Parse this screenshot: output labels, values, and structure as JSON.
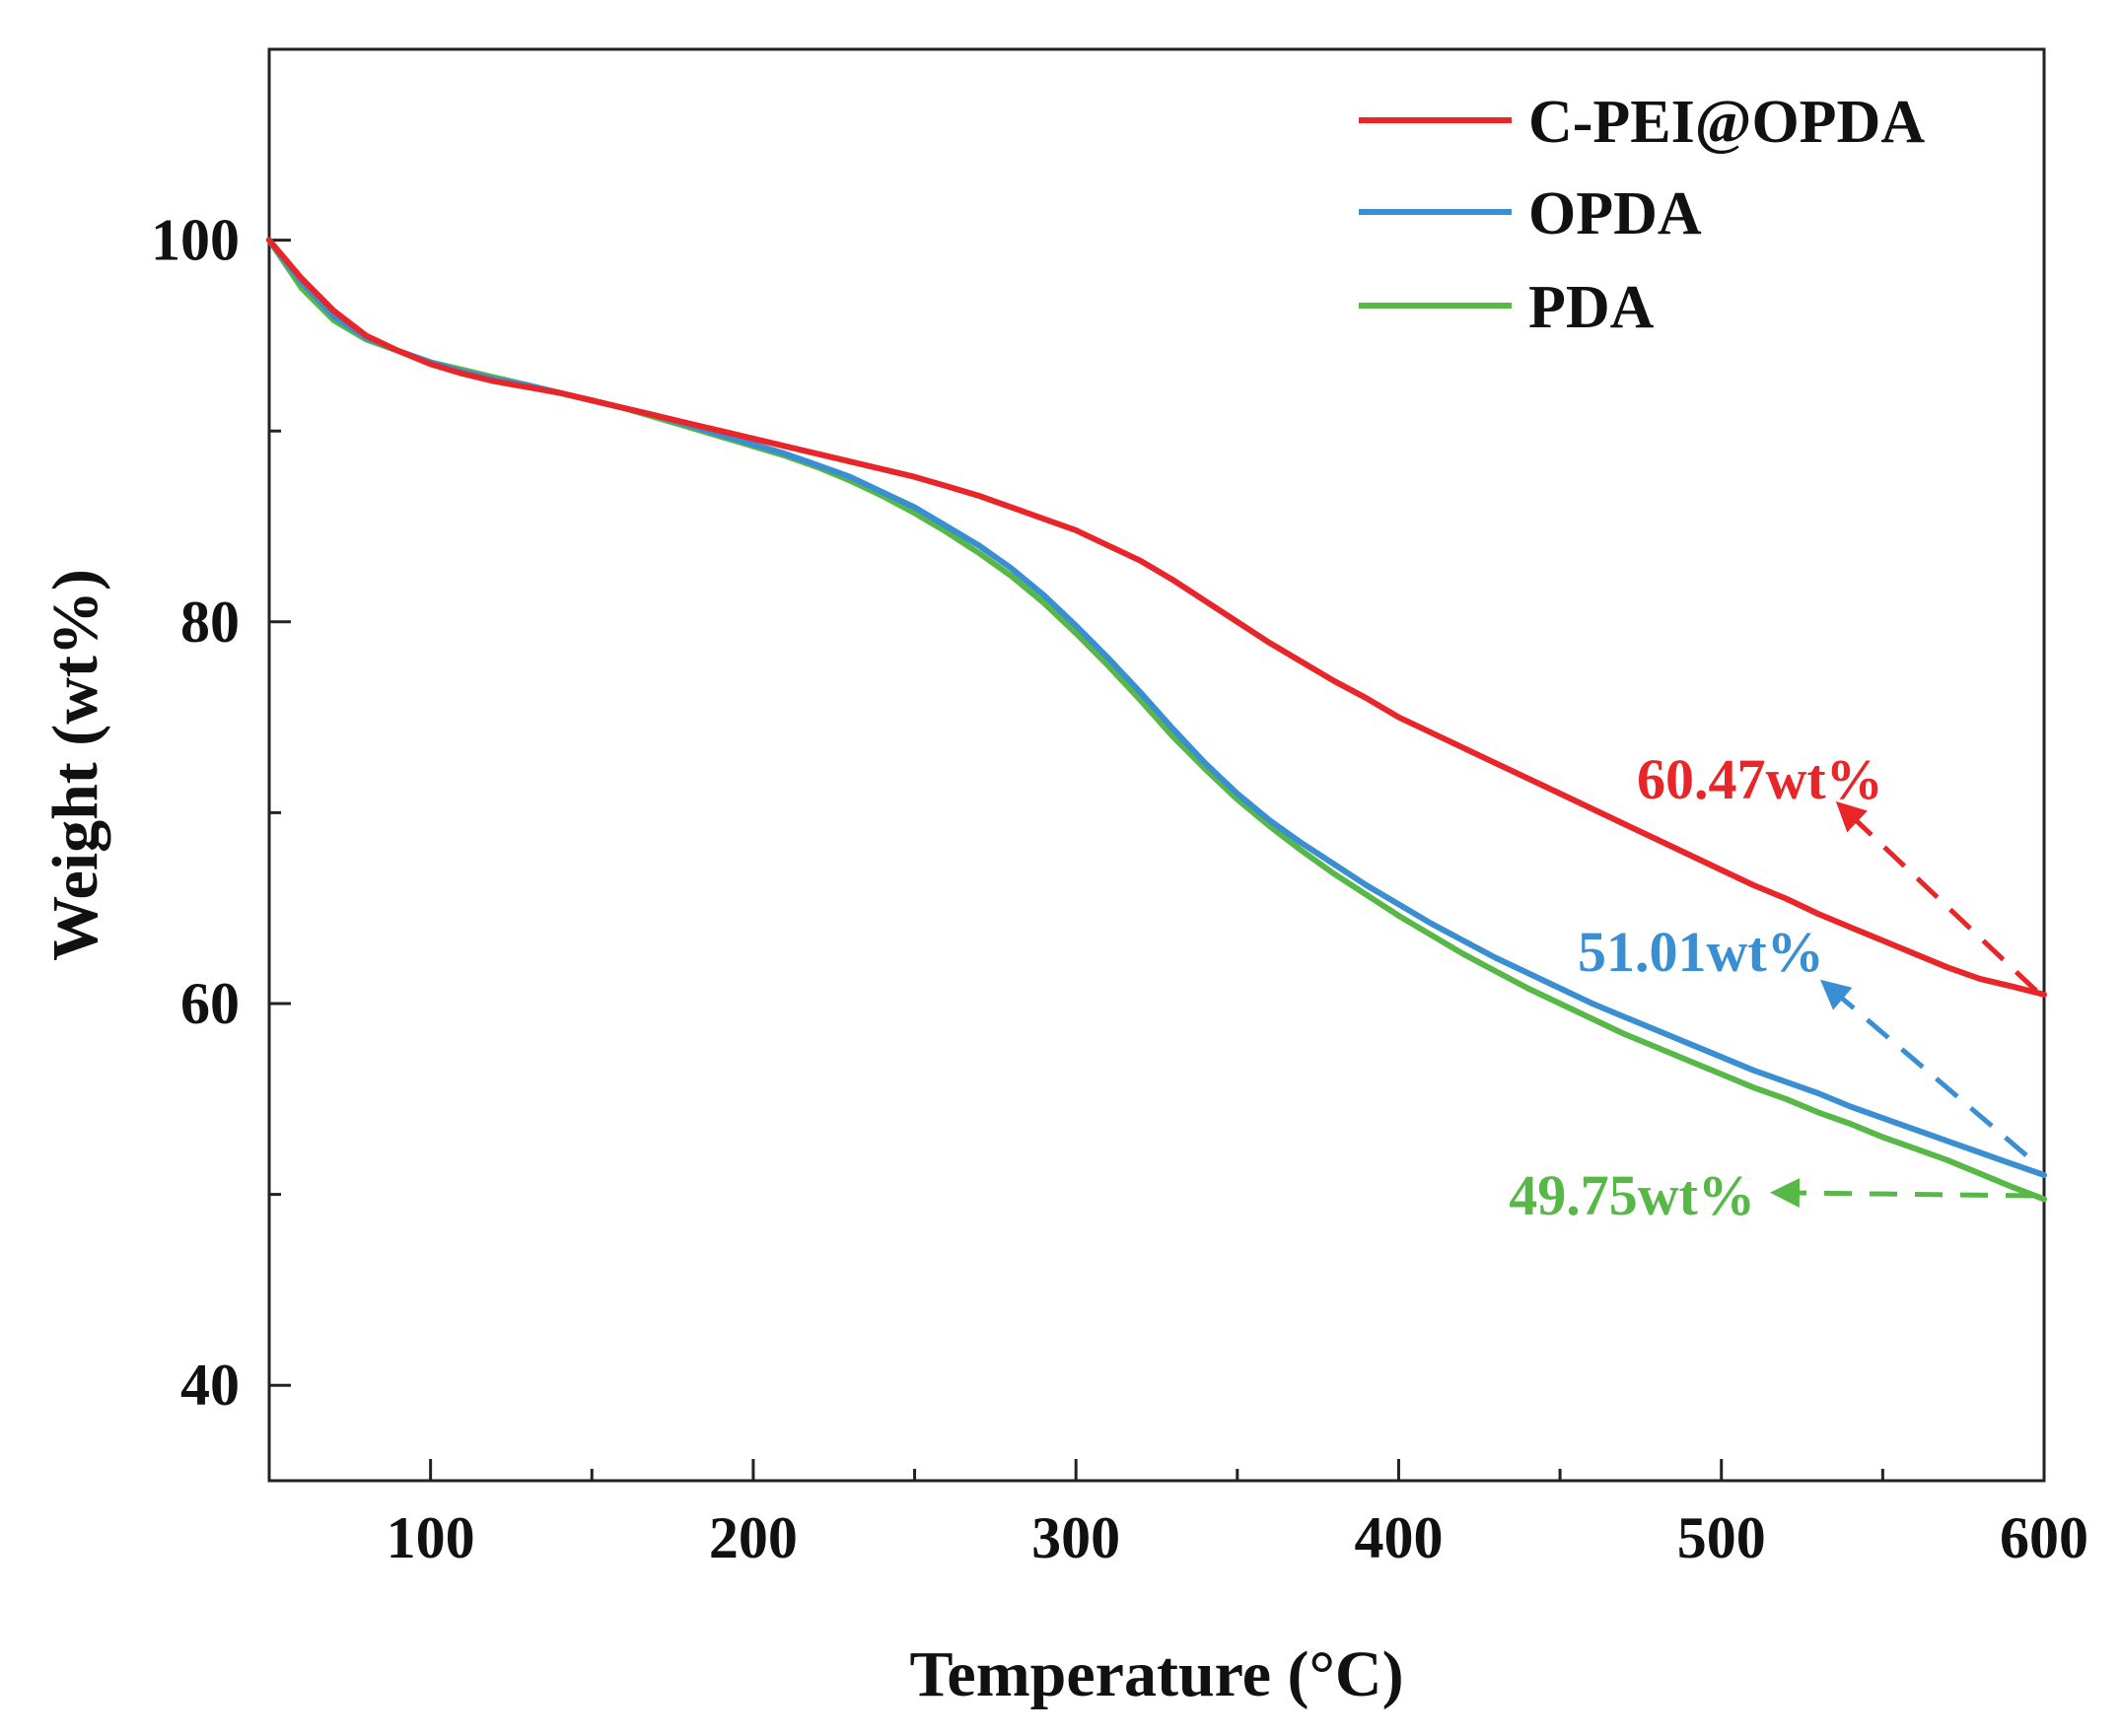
{
  "chart_data": {
    "type": "line",
    "xlabel": "Temperature (°C)",
    "ylabel": "Weight (wt%)",
    "xlim": [
      50,
      600
    ],
    "ylim": [
      35,
      110
    ],
    "x_ticks": [
      100,
      200,
      300,
      400,
      500,
      600
    ],
    "x_minor_ticks": [
      150,
      250,
      350,
      450,
      550
    ],
    "y_ticks": [
      40,
      60,
      80,
      100
    ],
    "y_minor_ticks": [
      50,
      70,
      90
    ],
    "grid": false,
    "legend_position": "top-right",
    "series": [
      {
        "name": "C-PEI@OPDA",
        "color": "#e8262a",
        "x": [
          50,
          60,
          70,
          80,
          90,
          100,
          110,
          120,
          130,
          140,
          150,
          160,
          170,
          180,
          190,
          200,
          210,
          220,
          230,
          240,
          250,
          260,
          270,
          280,
          290,
          300,
          310,
          320,
          330,
          340,
          350,
          360,
          370,
          380,
          390,
          400,
          410,
          420,
          430,
          440,
          450,
          460,
          470,
          480,
          490,
          500,
          510,
          520,
          530,
          540,
          550,
          560,
          570,
          580,
          590,
          600
        ],
        "y": [
          100.0,
          98.0,
          96.3,
          95.0,
          94.2,
          93.5,
          93.0,
          92.6,
          92.3,
          92.0,
          91.6,
          91.2,
          90.8,
          90.4,
          90.0,
          89.6,
          89.2,
          88.8,
          88.4,
          88.0,
          87.6,
          87.1,
          86.6,
          86.0,
          85.4,
          84.8,
          84.0,
          83.2,
          82.2,
          81.1,
          80.0,
          78.9,
          77.9,
          76.9,
          76.0,
          75.0,
          74.2,
          73.4,
          72.6,
          71.8,
          71.0,
          70.2,
          69.4,
          68.6,
          67.8,
          67.0,
          66.2,
          65.5,
          64.7,
          64.0,
          63.3,
          62.6,
          61.9,
          61.3,
          60.9,
          60.47
        ]
      },
      {
        "name": "OPDA",
        "color": "#3a8fd2",
        "x": [
          50,
          60,
          70,
          80,
          90,
          100,
          110,
          120,
          130,
          140,
          150,
          160,
          170,
          180,
          190,
          200,
          210,
          220,
          230,
          240,
          250,
          260,
          270,
          280,
          290,
          300,
          310,
          320,
          330,
          340,
          350,
          360,
          370,
          380,
          390,
          400,
          410,
          420,
          430,
          440,
          450,
          460,
          470,
          480,
          490,
          500,
          510,
          520,
          530,
          540,
          550,
          560,
          570,
          580,
          590,
          600
        ],
        "y": [
          100.0,
          97.8,
          96.0,
          94.9,
          94.2,
          93.6,
          93.1,
          92.7,
          92.4,
          92.0,
          91.6,
          91.2,
          90.8,
          90.3,
          89.8,
          89.3,
          88.8,
          88.2,
          87.6,
          86.8,
          86.0,
          85.0,
          84.0,
          82.8,
          81.4,
          79.8,
          78.1,
          76.3,
          74.4,
          72.6,
          71.0,
          69.6,
          68.4,
          67.3,
          66.2,
          65.2,
          64.2,
          63.3,
          62.4,
          61.6,
          60.8,
          60.0,
          59.3,
          58.6,
          57.9,
          57.2,
          56.5,
          55.9,
          55.3,
          54.6,
          54.0,
          53.4,
          52.8,
          52.2,
          51.6,
          51.01
        ]
      },
      {
        "name": "PDA",
        "color": "#57b848",
        "x": [
          50,
          60,
          70,
          80,
          90,
          100,
          110,
          120,
          130,
          140,
          150,
          160,
          170,
          180,
          190,
          200,
          210,
          220,
          230,
          240,
          250,
          260,
          270,
          280,
          290,
          300,
          310,
          320,
          330,
          340,
          350,
          360,
          370,
          380,
          390,
          400,
          410,
          420,
          430,
          440,
          450,
          460,
          470,
          480,
          490,
          500,
          510,
          520,
          530,
          540,
          550,
          560,
          570,
          580,
          590,
          600
        ],
        "y": [
          100.0,
          97.5,
          95.8,
          94.8,
          94.2,
          93.6,
          93.2,
          92.8,
          92.4,
          92.0,
          91.6,
          91.2,
          90.7,
          90.2,
          89.7,
          89.2,
          88.7,
          88.1,
          87.4,
          86.6,
          85.7,
          84.7,
          83.6,
          82.4,
          81.0,
          79.4,
          77.7,
          75.9,
          74.0,
          72.3,
          70.7,
          69.3,
          68.0,
          66.8,
          65.7,
          64.6,
          63.6,
          62.6,
          61.7,
          60.8,
          60.0,
          59.2,
          58.4,
          57.7,
          57.0,
          56.3,
          55.6,
          55.0,
          54.3,
          53.7,
          53.0,
          52.4,
          51.8,
          51.1,
          50.4,
          49.75
        ]
      }
    ],
    "annotations": [
      {
        "text": "60.47wt%",
        "color": "#e8262a",
        "points_to": {
          "x": 600,
          "y": 60.47
        },
        "arrow_style": "dashed"
      },
      {
        "text": "51.01wt%",
        "color": "#3a8fd2",
        "points_to": {
          "x": 600,
          "y": 51.01
        },
        "arrow_style": "dashed"
      },
      {
        "text": "49.75wt%",
        "color": "#57b848",
        "points_to": {
          "x": 600,
          "y": 49.75
        },
        "arrow_style": "dashed"
      }
    ]
  }
}
